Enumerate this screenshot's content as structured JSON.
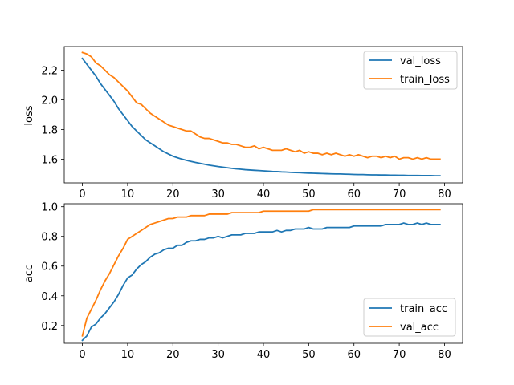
{
  "chart_data": [
    {
      "type": "line",
      "ylabel": "loss",
      "xlabel": "",
      "xlim": [
        -4,
        84
      ],
      "ylim": [
        1.44,
        2.36
      ],
      "xticks": [
        0,
        10,
        20,
        30,
        40,
        50,
        60,
        70,
        80
      ],
      "yticks": [
        1.6,
        1.8,
        2.0,
        2.2
      ],
      "ytick_labels": [
        "1.6",
        "1.8",
        "2.0",
        "2.2"
      ],
      "legend_position": "top-right",
      "series": [
        {
          "name": "val_loss",
          "color": "#1f77b4",
          "values": [
            2.28,
            2.24,
            2.2,
            2.16,
            2.11,
            2.07,
            2.03,
            1.99,
            1.94,
            1.9,
            1.86,
            1.82,
            1.79,
            1.76,
            1.73,
            1.71,
            1.69,
            1.67,
            1.65,
            1.635,
            1.62,
            1.61,
            1.6,
            1.592,
            1.585,
            1.578,
            1.572,
            1.566,
            1.56,
            1.555,
            1.55,
            1.546,
            1.542,
            1.538,
            1.535,
            1.532,
            1.529,
            1.527,
            1.525,
            1.523,
            1.521,
            1.519,
            1.517,
            1.516,
            1.514,
            1.513,
            1.511,
            1.51,
            1.509,
            1.507,
            1.506,
            1.505,
            1.504,
            1.503,
            1.502,
            1.501,
            1.5,
            1.5,
            1.499,
            1.498,
            1.497,
            1.496,
            1.496,
            1.495,
            1.494,
            1.494,
            1.493,
            1.493,
            1.492,
            1.492,
            1.491,
            1.491,
            1.49,
            1.49,
            1.49,
            1.489,
            1.489,
            1.489,
            1.488,
            1.488
          ]
        },
        {
          "name": "train_loss",
          "color": "#ff7f0e",
          "values": [
            2.32,
            2.31,
            2.29,
            2.25,
            2.23,
            2.2,
            2.17,
            2.15,
            2.12,
            2.09,
            2.06,
            2.02,
            1.98,
            1.97,
            1.94,
            1.91,
            1.89,
            1.87,
            1.85,
            1.83,
            1.82,
            1.81,
            1.8,
            1.79,
            1.79,
            1.77,
            1.75,
            1.74,
            1.74,
            1.73,
            1.72,
            1.71,
            1.71,
            1.7,
            1.7,
            1.69,
            1.68,
            1.68,
            1.69,
            1.67,
            1.68,
            1.67,
            1.66,
            1.66,
            1.66,
            1.67,
            1.66,
            1.65,
            1.66,
            1.64,
            1.65,
            1.64,
            1.64,
            1.63,
            1.64,
            1.63,
            1.64,
            1.63,
            1.62,
            1.63,
            1.62,
            1.63,
            1.62,
            1.61,
            1.62,
            1.62,
            1.61,
            1.62,
            1.61,
            1.62,
            1.6,
            1.61,
            1.61,
            1.6,
            1.61,
            1.6,
            1.61,
            1.6,
            1.6,
            1.6
          ]
        }
      ]
    },
    {
      "type": "line",
      "ylabel": "acc",
      "xlabel": "",
      "xlim": [
        -4,
        84
      ],
      "ylim": [
        0.08,
        1.02
      ],
      "xticks": [
        0,
        10,
        20,
        30,
        40,
        50,
        60,
        70,
        80
      ],
      "yticks": [
        0.2,
        0.4,
        0.6,
        0.8,
        1.0
      ],
      "ytick_labels": [
        "0.2",
        "0.4",
        "0.6",
        "0.8",
        "1.0"
      ],
      "legend_position": "bottom-right",
      "series": [
        {
          "name": "train_acc",
          "color": "#1f77b4",
          "values": [
            0.1,
            0.13,
            0.19,
            0.21,
            0.25,
            0.28,
            0.32,
            0.36,
            0.41,
            0.47,
            0.52,
            0.54,
            0.58,
            0.61,
            0.63,
            0.66,
            0.68,
            0.69,
            0.71,
            0.72,
            0.72,
            0.74,
            0.74,
            0.76,
            0.77,
            0.77,
            0.78,
            0.78,
            0.79,
            0.79,
            0.8,
            0.79,
            0.8,
            0.81,
            0.81,
            0.81,
            0.82,
            0.82,
            0.82,
            0.83,
            0.83,
            0.83,
            0.83,
            0.84,
            0.83,
            0.84,
            0.84,
            0.85,
            0.85,
            0.85,
            0.86,
            0.85,
            0.85,
            0.85,
            0.86,
            0.86,
            0.86,
            0.86,
            0.86,
            0.86,
            0.87,
            0.87,
            0.87,
            0.87,
            0.87,
            0.87,
            0.87,
            0.88,
            0.88,
            0.88,
            0.88,
            0.89,
            0.88,
            0.88,
            0.89,
            0.88,
            0.89,
            0.88,
            0.88,
            0.88
          ]
        },
        {
          "name": "val_acc",
          "color": "#ff7f0e",
          "values": [
            0.13,
            0.25,
            0.31,
            0.37,
            0.44,
            0.5,
            0.55,
            0.61,
            0.67,
            0.72,
            0.78,
            0.8,
            0.82,
            0.84,
            0.86,
            0.88,
            0.89,
            0.9,
            0.91,
            0.92,
            0.92,
            0.93,
            0.93,
            0.93,
            0.94,
            0.94,
            0.94,
            0.94,
            0.95,
            0.95,
            0.95,
            0.95,
            0.95,
            0.96,
            0.96,
            0.96,
            0.96,
            0.96,
            0.96,
            0.96,
            0.97,
            0.97,
            0.97,
            0.97,
            0.97,
            0.97,
            0.97,
            0.97,
            0.97,
            0.97,
            0.97,
            0.98,
            0.98,
            0.98,
            0.98,
            0.98,
            0.98,
            0.98,
            0.98,
            0.98,
            0.98,
            0.98,
            0.98,
            0.98,
            0.98,
            0.98,
            0.98,
            0.98,
            0.98,
            0.98,
            0.98,
            0.98,
            0.98,
            0.98,
            0.98,
            0.98,
            0.98,
            0.98,
            0.98,
            0.98
          ]
        }
      ]
    }
  ]
}
